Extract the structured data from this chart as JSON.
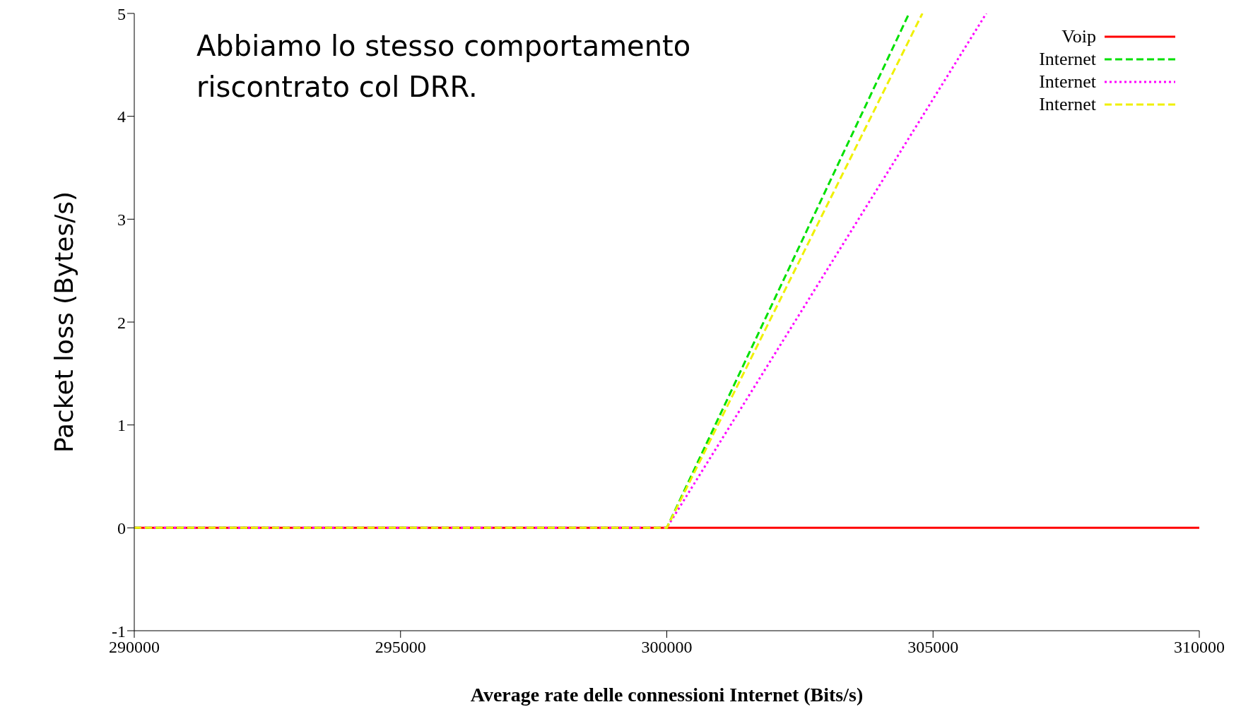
{
  "chart_data": {
    "type": "line",
    "xlabel": "Average rate delle connessioni Internet (Bits/s)",
    "ylabel": "Packet loss (Bytes/s)",
    "annotations": [
      "Abbiamo lo stesso comportamento riscontrato col DRR."
    ],
    "xlim": [
      290000,
      310000
    ],
    "xticks": [
      290000,
      295000,
      300000,
      305000,
      310000
    ],
    "ylim": [
      -1,
      5
    ],
    "yticks": [
      -1,
      0,
      1,
      2,
      3,
      4,
      5
    ],
    "grid": false,
    "legend": "top right",
    "marker": "none",
    "series": [
      {
        "name": "Voip",
        "color": "#ff0000",
        "line_style": "solid",
        "x": [
          290000,
          310000
        ],
        "values": [
          0,
          0
        ]
      },
      {
        "name": "Internet",
        "color": "#00e000",
        "line_style": "dashed",
        "x": [
          290000,
          300000,
          304550
        ],
        "values": [
          0,
          0,
          5
        ]
      },
      {
        "name": "Internet",
        "color": "#ff00ff",
        "line_style": "dotted",
        "x": [
          290000,
          300000,
          306000
        ],
        "values": [
          0,
          0,
          5
        ]
      },
      {
        "name": "Internet",
        "color": "#f0f000",
        "line_style": "dashed",
        "x": [
          290000,
          300000,
          304800
        ],
        "values": [
          0,
          0,
          5
        ]
      }
    ]
  }
}
